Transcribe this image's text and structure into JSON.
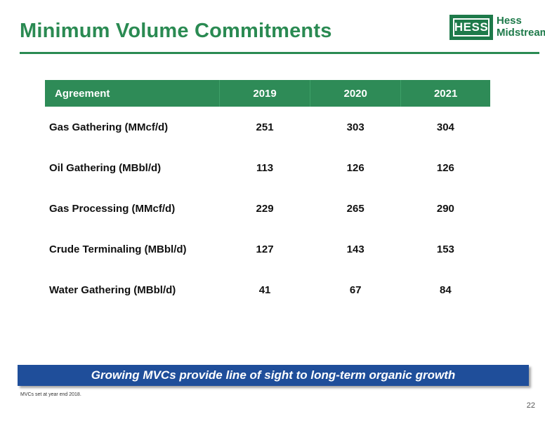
{
  "slide": {
    "title": "Minimum Volume Commitments",
    "logo": {
      "mark_text": "HESS",
      "line1": "Hess",
      "line2": "Midstream"
    },
    "table": {
      "headers": [
        "Agreement",
        "2019",
        "2020",
        "2021"
      ],
      "rows": [
        {
          "label": "Gas Gathering (MMcf/d)",
          "values": [
            "251",
            "303",
            "304"
          ]
        },
        {
          "label": "Oil Gathering (MBbl/d)",
          "values": [
            "113",
            "126",
            "126"
          ]
        },
        {
          "label": "Gas Processing (MMcf/d)",
          "values": [
            "229",
            "265",
            "290"
          ]
        },
        {
          "label": "Crude Terminaling (MBbl/d)",
          "values": [
            "127",
            "143",
            "153"
          ]
        },
        {
          "label": "Water Gathering (MBbl/d)",
          "values": [
            "41",
            "67",
            "84"
          ]
        }
      ]
    },
    "banner": "Growing MVCs provide line of sight to long-term organic growth",
    "footnote": "MVCs set at year end 2018.",
    "page_number": "22"
  },
  "colors": {
    "brand_green": "#2a8a52",
    "header_green": "#2e8b57",
    "banner_blue": "#1f4e9a"
  }
}
